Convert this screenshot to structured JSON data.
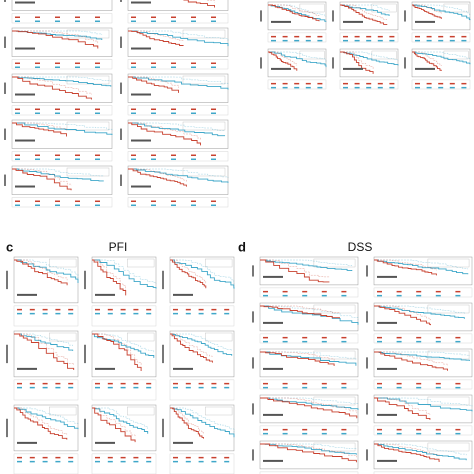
{
  "panels": [
    {
      "label": "c",
      "title": "PFI"
    },
    {
      "label": "d",
      "title": "DSS"
    }
  ]
}
